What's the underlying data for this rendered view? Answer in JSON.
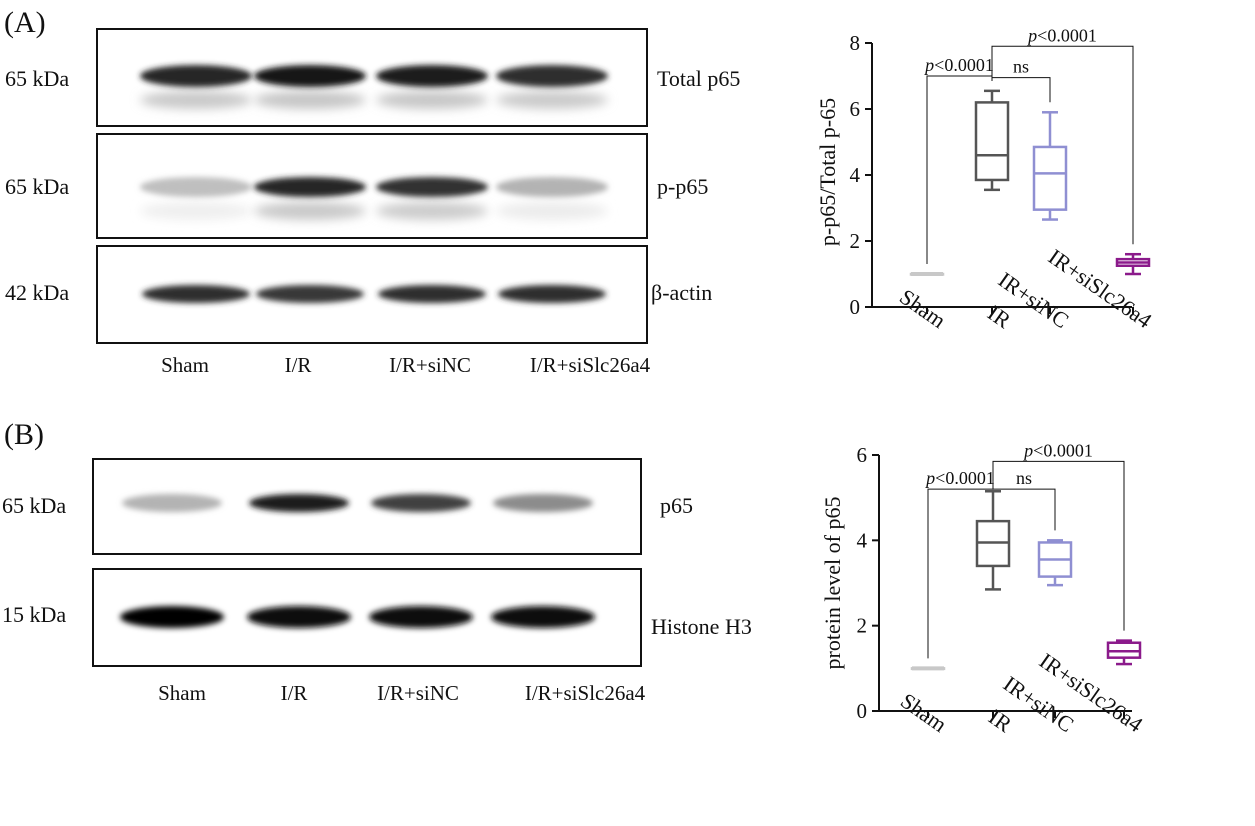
{
  "panels": [
    {
      "letter": "(A)",
      "blots": [
        {
          "kda": "65 kDa",
          "label": "Total p65",
          "intensities": [
            0.85,
            0.9,
            0.88,
            0.82
          ]
        },
        {
          "kda": "65 kDa",
          "label": "p-p65",
          "intensities": [
            0.25,
            0.85,
            0.8,
            0.3
          ]
        },
        {
          "kda": "42 kDa",
          "label": "β-actin",
          "intensities": [
            0.82,
            0.78,
            0.82,
            0.82
          ]
        }
      ],
      "lanes": [
        "Sham",
        "I/R",
        "I/R+siNC",
        "I/R+siSlc26a4"
      ]
    },
    {
      "letter": "(B)",
      "blots": [
        {
          "kda": "65 kDa",
          "label": "p65",
          "intensities": [
            0.3,
            0.88,
            0.75,
            0.45
          ]
        },
        {
          "kda": "15 kDa",
          "label": "Histone H3",
          "intensities": [
            0.98,
            0.95,
            0.95,
            0.95
          ]
        }
      ],
      "lanes": [
        "Sham",
        "I/R",
        "I/R+siNC",
        "I/R+siSlc26a4"
      ]
    }
  ],
  "colors": {
    "sham": "#c8c8c8",
    "ir": "#555555",
    "irsinc": "#8f8fd2",
    "irsislc": "#8b1a8b"
  },
  "chart_data": [
    {
      "type": "box",
      "ylabel": "p-p65/Total p-65",
      "ylim": [
        0,
        8
      ],
      "yticks": [
        0,
        2,
        4,
        6,
        8
      ],
      "categories": [
        "Sham",
        "IR",
        "IR+siNC",
        "IR+siSlc26a4"
      ],
      "boxes": [
        {
          "min": 1.0,
          "q1": 1.0,
          "median": 1.0,
          "q3": 1.0,
          "max": 1.0
        },
        {
          "min": 3.55,
          "q1": 3.85,
          "median": 4.6,
          "q3": 6.2,
          "max": 6.55
        },
        {
          "min": 2.65,
          "q1": 2.95,
          "median": 4.05,
          "q3": 4.85,
          "max": 5.9
        },
        {
          "min": 1.0,
          "q1": 1.25,
          "median": 1.35,
          "q3": 1.45,
          "max": 1.6
        }
      ],
      "comparisons": [
        {
          "from": 0,
          "to": 1,
          "label": "p<0.0001",
          "y": 7.0
        },
        {
          "from": 1,
          "to": 2,
          "label": "ns",
          "y": 6.95
        },
        {
          "from": 1,
          "to": 3,
          "label": "p<0.0001",
          "y": 7.9
        }
      ]
    },
    {
      "type": "box",
      "ylabel": "protein level of p65",
      "ylim": [
        0,
        6
      ],
      "yticks": [
        0,
        2,
        4,
        6
      ],
      "categories": [
        "Sham",
        "IR",
        "IR+siNC",
        "IR+siSlc26a4"
      ],
      "boxes": [
        {
          "min": 1.0,
          "q1": 1.0,
          "median": 1.0,
          "q3": 1.0,
          "max": 1.0
        },
        {
          "min": 2.85,
          "q1": 3.4,
          "median": 3.95,
          "q3": 4.45,
          "max": 5.15
        },
        {
          "min": 2.95,
          "q1": 3.15,
          "median": 3.55,
          "q3": 3.95,
          "max": 4.0
        },
        {
          "min": 1.1,
          "q1": 1.25,
          "median": 1.4,
          "q3": 1.6,
          "max": 1.65
        }
      ],
      "comparisons": [
        {
          "from": 0,
          "to": 1,
          "label": "p<0.0001",
          "y": 5.2
        },
        {
          "from": 1,
          "to": 2,
          "label": "ns",
          "y": 5.2
        },
        {
          "from": 1,
          "to": 3,
          "label": "p<0.0001",
          "y": 5.85
        }
      ]
    }
  ]
}
